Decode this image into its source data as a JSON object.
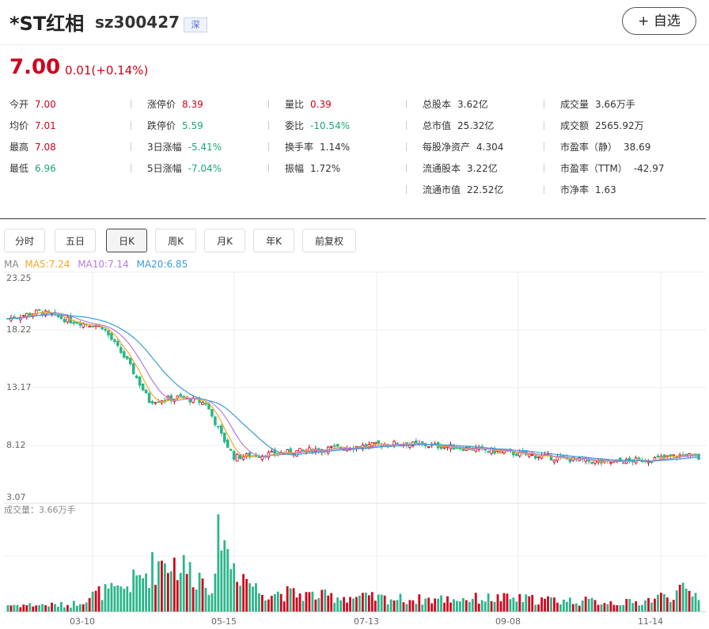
{
  "header": {
    "name": "*ST红相",
    "code": "sz300427",
    "exchange": "深",
    "add_button": "+ 自选"
  },
  "quote": {
    "price": "7.00",
    "change": "0.01(+0.14%)"
  },
  "stats": [
    [
      {
        "label": "今开",
        "value": "7.00",
        "color": "red"
      },
      {
        "label": "均价",
        "value": "7.01",
        "color": "red"
      },
      {
        "label": "最高",
        "value": "7.08",
        "color": "red"
      },
      {
        "label": "最低",
        "value": "6.96",
        "color": "green"
      }
    ],
    [
      {
        "label": "涨停价",
        "value": "8.39",
        "color": "red"
      },
      {
        "label": "跌停价",
        "value": "5.59",
        "color": "green"
      },
      {
        "label": "3日涨幅",
        "value": "-5.41%",
        "color": "green"
      },
      {
        "label": "5日涨幅",
        "value": "-7.04%",
        "color": "green"
      }
    ],
    [
      {
        "label": "量比",
        "value": "0.39",
        "color": "red"
      },
      {
        "label": "委比",
        "value": "-10.54%",
        "color": "green"
      },
      {
        "label": "换手率",
        "value": "1.14%",
        "color": "black"
      },
      {
        "label": "振幅",
        "value": "1.72%",
        "color": "black"
      }
    ],
    [
      {
        "label": "总股本",
        "value": "3.62亿",
        "color": "black"
      },
      {
        "label": "总市值",
        "value": "25.32亿",
        "color": "black"
      },
      {
        "label": "每股净资产",
        "value": "4.304",
        "color": "black"
      },
      {
        "label": "流通股本",
        "value": "3.22亿",
        "color": "black"
      },
      {
        "label": "流通市值",
        "value": "22.52亿",
        "color": "black"
      }
    ],
    [
      {
        "label": "成交量",
        "value": "3.66万手",
        "color": "black"
      },
      {
        "label": "成交额",
        "value": "2565.92万",
        "color": "black"
      },
      {
        "label": "市盈率（静）",
        "value": "38.69",
        "color": "black"
      },
      {
        "label": "市盈率（TTM）",
        "value": "-42.97",
        "color": "black"
      },
      {
        "label": "市净率",
        "value": "1.63",
        "color": "black"
      }
    ]
  ],
  "tabs": [
    "分时",
    "五日",
    "日K",
    "周K",
    "月K",
    "年K",
    "前复权"
  ],
  "active_tab": "日K",
  "ma_legend": {
    "label": "MA",
    "ma5": "MA5:7.24",
    "ma10": "MA10:7.14",
    "ma20": "MA20:6.85"
  },
  "colors": {
    "up": "#d0021b",
    "down": "#2bb58a",
    "ma5": "#f5a623",
    "ma10": "#b57be0",
    "ma20": "#3a9bd6"
  },
  "chart_data": {
    "type": "candlestick",
    "y_ticks": [
      "23.25",
      "18.22",
      "13.17",
      "8.12",
      "3.07"
    ],
    "ylim": [
      3.07,
      23.25
    ],
    "x_ticks": [
      "03-10",
      "05-15",
      "07-13",
      "09-08",
      "11-14"
    ],
    "volume_label": "成交量：3.66万手",
    "close_anchors": [
      [
        0,
        19.2
      ],
      [
        10,
        19.8
      ],
      [
        20,
        19.0
      ],
      [
        30,
        18.5
      ],
      [
        38,
        15.5
      ],
      [
        45,
        12.0
      ],
      [
        55,
        12.3
      ],
      [
        63,
        11.8
      ],
      [
        68,
        9.0
      ],
      [
        72,
        7.1
      ],
      [
        85,
        7.4
      ],
      [
        100,
        7.8
      ],
      [
        115,
        8.1
      ],
      [
        125,
        8.3
      ],
      [
        145,
        7.9
      ],
      [
        165,
        7.3
      ],
      [
        190,
        6.6
      ],
      [
        205,
        6.9
      ],
      [
        216,
        7.3
      ],
      [
        220,
        7.0
      ]
    ],
    "volume_anchors": [
      [
        0,
        1.0
      ],
      [
        20,
        1.0
      ],
      [
        30,
        3.0
      ],
      [
        35,
        3.0
      ],
      [
        42,
        5.0
      ],
      [
        50,
        8.0
      ],
      [
        56,
        6.5
      ],
      [
        62,
        5.0
      ],
      [
        66,
        4.0
      ],
      [
        68,
        16.0
      ],
      [
        70,
        8.0
      ],
      [
        80,
        3.0
      ],
      [
        100,
        2.3
      ],
      [
        130,
        1.8
      ],
      [
        155,
        2.0
      ],
      [
        200,
        1.3
      ],
      [
        215,
        3.0
      ],
      [
        220,
        2.5
      ]
    ]
  }
}
